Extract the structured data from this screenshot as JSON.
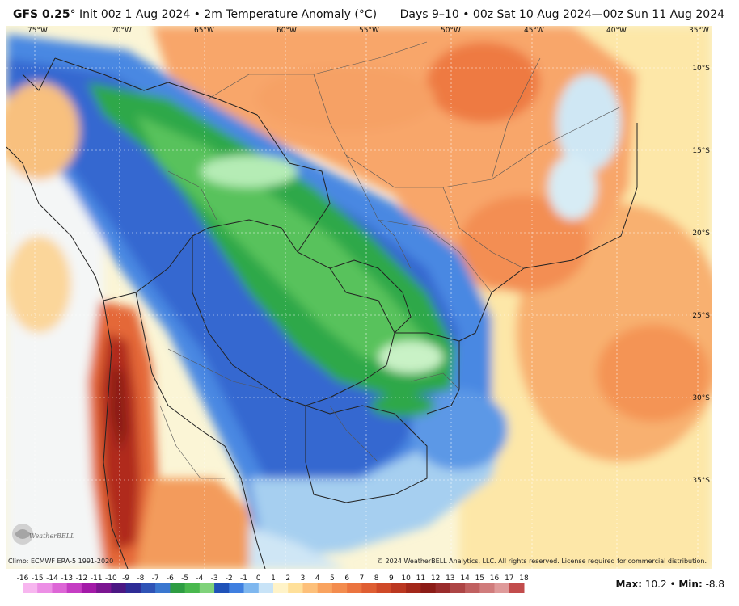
{
  "header": {
    "model": "GFS 0.25",
    "degree_mark": "°",
    "init": " Init 00z 1 Aug 2024 • 2m Temperature Anomaly (°C)",
    "valid": "Days 9–10 • 00z Sat 10 Aug 2024—00z Sun 11 Aug 2024"
  },
  "map": {
    "lon_labels": [
      "75°W",
      "70°W",
      "65°W",
      "60°W",
      "55°W",
      "50°W",
      "45°W",
      "40°W",
      "35°W"
    ],
    "lat_labels": [
      "10°S",
      "15°S",
      "20°S",
      "25°S",
      "30°S",
      "35°S"
    ],
    "colors": {
      "warm_strong": "#b0281c",
      "warm": "#f08a52",
      "warm_light": "#fbc98b",
      "cool": "#3f7ee0",
      "cool_light": "#a9d2f2",
      "cool_green": "#3cb54a",
      "cool_green_light": "#9ee39a"
    }
  },
  "footer": {
    "climo": "Climo: ECMWF ERA-5 1991-2020",
    "copyright": "© 2024 WeatherBELL Analytics, LLC. All rights reserved. License required for commercial distribution.",
    "logo_text": "WeatherBELL",
    "max_label": "Max:",
    "max_value": " 10.2",
    "sep": " • ",
    "min_label": "Min:",
    "min_value": " -8.8"
  },
  "scale": {
    "labels": [
      "-16",
      "-15",
      "-14",
      "-13",
      "-12",
      "-11",
      "-10",
      "-9",
      "-8",
      "-7",
      "-6",
      "-5",
      "-4",
      "-3",
      "-2",
      "-1",
      "0",
      "1",
      "2",
      "3",
      "4",
      "5",
      "6",
      "7",
      "8",
      "9",
      "10",
      "11",
      "12",
      "13",
      "14",
      "15",
      "16",
      "17",
      "18"
    ],
    "colors": [
      "#f7b6ef",
      "#ec8fe5",
      "#dd66d6",
      "#c53dc3",
      "#a31aa8",
      "#7b1591",
      "#4b1783",
      "#2e2c96",
      "#2f53b6",
      "#3a77cf",
      "#2e9d43",
      "#49b84e",
      "#7fd27a",
      "#1f52b8",
      "#3f7fe0",
      "#7eb7ef",
      "#c8e3f7",
      "#fff3c8",
      "#ffe09a",
      "#fdc07a",
      "#f9a35f",
      "#f38c4e",
      "#eb743f",
      "#df5e32",
      "#cf4928",
      "#bb3720",
      "#a3281a",
      "#8c1c17",
      "#9a2c2c",
      "#ad4545",
      "#c06060",
      "#d07c7c",
      "#df9a9a",
      "#c24c4c"
    ]
  }
}
